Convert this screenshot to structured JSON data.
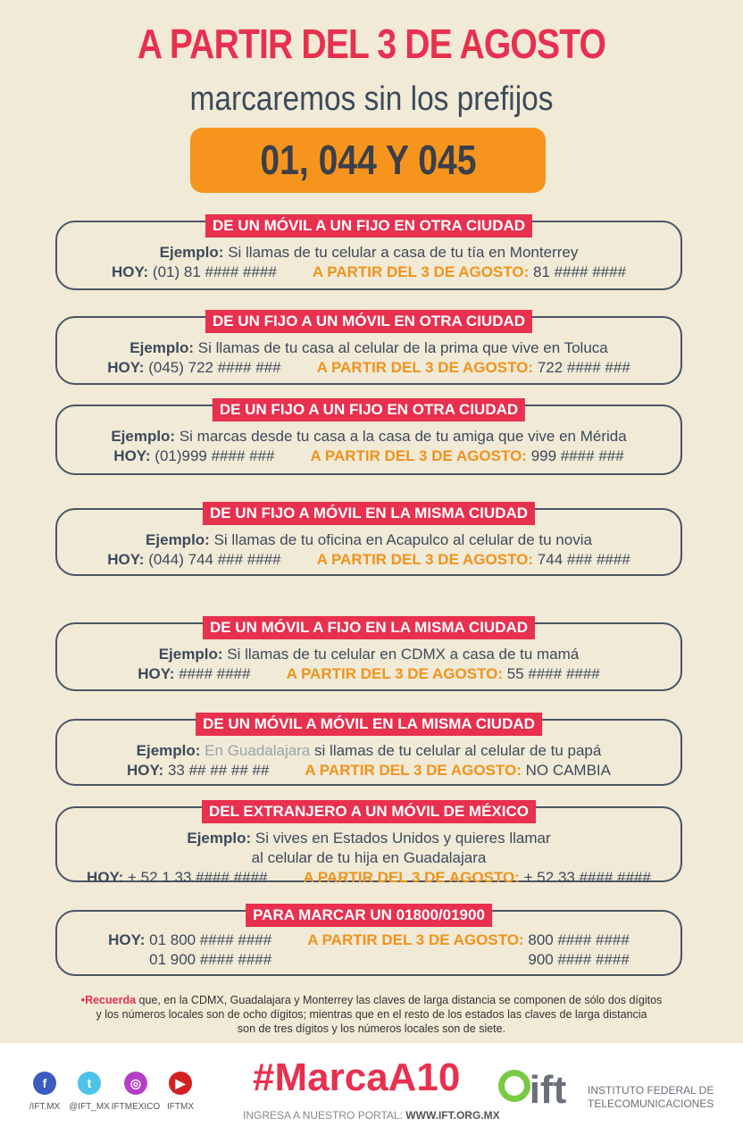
{
  "header": {
    "title": "A PARTIR DEL 3 DE AGOSTO",
    "subtitle": "marcaremos sin los prefijos",
    "prefixes": "01, 044 Y 045"
  },
  "labels": {
    "example": "Ejemplo:",
    "today": "HOY:",
    "from": "A PARTIR DEL 3 DE AGOSTO:"
  },
  "cards": [
    {
      "tag": "DE UN MÓVIL A UN FIJO EN OTRA CIUDAD",
      "example": "Si llamas de tu celular a casa de tu tía en Monterrey",
      "today": "(01) 81 #### ####",
      "new": "81 #### ####"
    },
    {
      "tag": "DE UN FIJO A UN MÓVIL EN OTRA CIUDAD",
      "example": "Si llamas de tu casa al celular de la prima que vive en Toluca",
      "today": "(045) 722 #### ###",
      "new": "722 #### ###"
    },
    {
      "tag": "DE UN FIJO A UN FIJO EN OTRA CIUDAD",
      "example": "Si marcas desde tu casa a la casa de tu amiga que vive en Mérida",
      "today": "(01)999 #### ###",
      "new": "999 #### ###"
    },
    {
      "tag": "DE UN FIJO A MÓVIL EN LA MISMA CIUDAD",
      "example": "Si llamas de tu oficina en Acapulco al celular de tu novia",
      "today": "(044) 744 ### ####",
      "new": "744 ### ####"
    },
    {
      "tag": "DE UN MÓVIL A FIJO EN LA MISMA CIUDAD",
      "example": "Si llamas de tu celular en CDMX a casa de tu mamá",
      "today": "#### ####",
      "new": "55 #### ####"
    },
    {
      "tag": "DE UN MÓVIL A MÓVIL EN LA MISMA CIUDAD",
      "example_highlight": "En Guadalajara",
      "example": "si llamas de tu celular al celular de tu papá",
      "today": "33 ## ## ## ##",
      "new": "NO CAMBIA"
    },
    {
      "tag": "DEL EXTRANJERO A UN MÓVIL DE MÉXICO",
      "example": "Si vives en Estados Unidos y quieres llamar",
      "example_line2": "al celular de tu hija en Guadalajara",
      "today": "+ 52 1 33 #### ####",
      "new": "+ 52 33 #### ####"
    },
    {
      "tag": "PARA MARCAR UN 01800/01900",
      "today": "01 800 #### ####",
      "today2": "01 900 #### ####",
      "new": "800 #### ####",
      "new2": "900 #### ####"
    }
  ],
  "note": {
    "bold": "•Recuerda",
    "line1": "que, en la CDMX, Guadalajara y Monterrey las claves de larga distancia se componen de sólo dos dígitos",
    "line2": "y los números locales son de ocho dígitos; mientras que en el resto de los estados las claves de larga distancia",
    "line3": "son de tres dígitos y los números locales son de siete."
  },
  "footer": {
    "social": [
      {
        "icon": "facebook-icon",
        "glyph": "f",
        "label": "/IFT.MX",
        "color": "#3b5bbf"
      },
      {
        "icon": "twitter-icon",
        "glyph": "t",
        "label": "@IFT_MX",
        "color": "#4ec3e8"
      },
      {
        "icon": "instagram-icon",
        "glyph": "◎",
        "label": "IFTMEXICO",
        "color": "#b43fc6"
      },
      {
        "icon": "youtube-icon",
        "glyph": "▶",
        "label": "IFTMX",
        "color": "#d32020"
      }
    ],
    "hashtag": "#MarcaA10",
    "portal_label": "INGRESA A NUESTRO PORTAL:",
    "portal_url": "WWW.IFT.ORG.MX",
    "logo_text": "ift",
    "org_line1": "INSTITUTO FEDERAL DE",
    "org_line2": "TELECOMUNICACIONES"
  },
  "colors": {
    "red": "#e8304f",
    "orange": "#f7941d",
    "dark": "#3d4a5c",
    "background": "#f1ead6"
  }
}
